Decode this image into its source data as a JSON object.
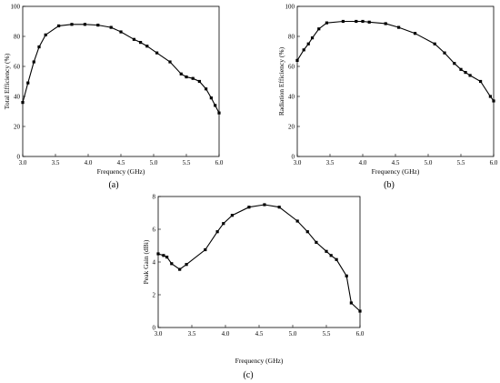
{
  "chart_data": [
    {
      "type": "line",
      "panel_label": "(a)",
      "xlabel": "Frequency (GHz)",
      "ylabel": "Total Efficiency (%)",
      "xlim": [
        3.0,
        6.0
      ],
      "ylim": [
        0,
        100
      ],
      "xticks": [
        "3.0",
        "3.5",
        "4.0",
        "4.5",
        "5.0",
        "5.5",
        "6.0"
      ],
      "yticks": [
        "0",
        "20",
        "40",
        "60",
        "80",
        "100"
      ],
      "grid": false,
      "marker": "square",
      "color": "#000000",
      "x": [
        3.0,
        3.08,
        3.17,
        3.25,
        3.35,
        3.55,
        3.75,
        3.95,
        4.15,
        4.35,
        4.5,
        4.7,
        4.8,
        4.9,
        5.05,
        5.25,
        5.42,
        5.5,
        5.6,
        5.7,
        5.8,
        5.88,
        5.94,
        6.0
      ],
      "y": [
        36,
        49,
        63,
        73,
        81,
        87,
        88,
        88,
        87.5,
        86,
        83,
        78,
        76,
        73.5,
        69,
        63,
        55,
        53,
        52,
        50,
        45,
        39,
        34,
        29
      ]
    },
    {
      "type": "line",
      "panel_label": "(b)",
      "xlabel": "Frequency (GHz)",
      "ylabel": "Radiation Efficiency (%)",
      "xlim": [
        3.0,
        6.0
      ],
      "ylim": [
        0,
        100
      ],
      "xticks": [
        "3.0",
        "3.5",
        "4.0",
        "4.5",
        "5.0",
        "5.5",
        "6.0"
      ],
      "yticks": [
        "0",
        "20",
        "40",
        "60",
        "80",
        "100"
      ],
      "grid": false,
      "marker": "square",
      "color": "#000000",
      "x": [
        3.0,
        3.1,
        3.17,
        3.23,
        3.33,
        3.45,
        3.7,
        3.9,
        4.0,
        4.1,
        4.35,
        4.55,
        4.8,
        5.1,
        5.25,
        5.4,
        5.5,
        5.57,
        5.64,
        5.8,
        5.95,
        6.0
      ],
      "y": [
        64,
        71,
        75,
        79,
        85,
        89,
        90,
        90,
        90,
        89.5,
        88.5,
        86,
        82,
        75,
        69,
        62,
        58,
        56,
        54,
        50,
        40,
        37
      ]
    },
    {
      "type": "line",
      "panel_label": "(c)",
      "xlabel": "Frequency (GHz)",
      "ylabel": "Peak Gain (dBi)",
      "xlim": [
        3.0,
        6.0
      ],
      "ylim": [
        0,
        8
      ],
      "xticks": [
        "3.0",
        "3.5",
        "4.0",
        "4.5",
        "5.0",
        "5.5",
        "6.0"
      ],
      "yticks": [
        "0",
        "2",
        "4",
        "6",
        "8"
      ],
      "grid": false,
      "marker": "square",
      "color": "#000000",
      "x": [
        3.0,
        3.08,
        3.13,
        3.2,
        3.32,
        3.42,
        3.7,
        3.88,
        3.97,
        4.1,
        4.35,
        4.58,
        4.8,
        5.07,
        5.22,
        5.35,
        5.5,
        5.57,
        5.65,
        5.8,
        5.87,
        6.0
      ],
      "y": [
        4.5,
        4.4,
        4.3,
        3.9,
        3.55,
        3.85,
        4.75,
        5.85,
        6.35,
        6.85,
        7.35,
        7.5,
        7.35,
        6.5,
        5.85,
        5.2,
        4.65,
        4.4,
        4.15,
        3.15,
        1.5,
        1.0
      ]
    }
  ]
}
